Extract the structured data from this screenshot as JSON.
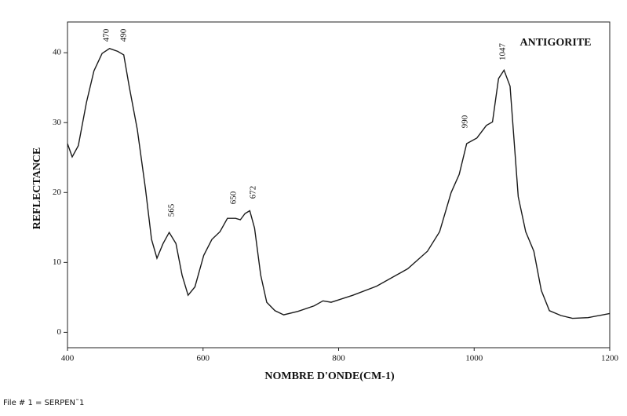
{
  "chart_data": {
    "type": "line",
    "x_label": "NOMBRE D'ONDE(CM-1)",
    "y_label": "REFLECTANCE",
    "annotation": "ANTIGORITE",
    "peak_labels": [
      "470",
      "490",
      "565",
      "650",
      "672",
      "990",
      "1047"
    ],
    "footer": "File # 1 = SERPEN˜1",
    "xlim": [
      400,
      1200
    ],
    "xticks": [
      400,
      600,
      800,
      1000,
      1200
    ],
    "ylim": [
      -2.2,
      44.4
    ],
    "yticks": [
      0,
      10,
      20,
      30,
      40
    ],
    "color": "#1a1a1a",
    "x": [
      400,
      407,
      416,
      428,
      439,
      451,
      462,
      474,
      483,
      491,
      503,
      515,
      524,
      532,
      541,
      550,
      560,
      569,
      578,
      588,
      601,
      613,
      625,
      636,
      648,
      655,
      662,
      669,
      676,
      685,
      694,
      706,
      719,
      740,
      764,
      777,
      789,
      821,
      856,
      902,
      931,
      949,
      966,
      978,
      989,
      1004,
      1018,
      1027,
      1036,
      1044,
      1053,
      1065,
      1076,
      1088,
      1099,
      1111,
      1128,
      1145,
      1168,
      1200
    ],
    "values": [
      27,
      25.1,
      26.7,
      32.9,
      37.4,
      39.9,
      40.6,
      40.2,
      39.7,
      35.2,
      29,
      20.6,
      13.3,
      10.6,
      12.7,
      14.3,
      12.7,
      8.2,
      5.3,
      6.5,
      11,
      13.3,
      14.4,
      16.3,
      16.3,
      16.1,
      17,
      17.4,
      14.9,
      8.2,
      4.3,
      3.1,
      2.5,
      3,
      3.8,
      4.5,
      4.3,
      5.3,
      6.6,
      9.1,
      11.6,
      14.4,
      20,
      22.6,
      27,
      27.8,
      29.6,
      30.1,
      36.3,
      37.5,
      35.2,
      19.4,
      14.4,
      11.6,
      6,
      3.1,
      2.4,
      2,
      2.1,
      2.7
    ]
  }
}
